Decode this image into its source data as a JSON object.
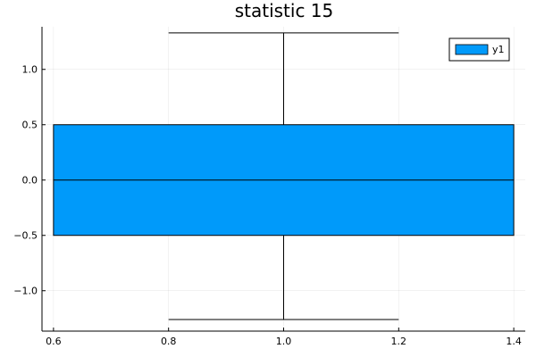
{
  "chart_data": {
    "type": "box",
    "title": "statistic 15",
    "xlabel": "",
    "ylabel": "",
    "xlim": [
      0.58,
      1.42
    ],
    "ylim": [
      -1.365,
      1.385
    ],
    "x_ticks": [
      0.6,
      0.8,
      1.0,
      1.2,
      1.4
    ],
    "x_tick_labels": [
      "0.6",
      "0.8",
      "1.0",
      "1.2",
      "1.4"
    ],
    "y_ticks": [
      -1.0,
      -0.5,
      0.0,
      0.5,
      1.0
    ],
    "y_tick_labels": [
      "−1.0",
      "−0.5",
      "0.0",
      "0.5",
      "1.0"
    ],
    "grid": true,
    "legend": {
      "position": "top-right",
      "entries": [
        "y1"
      ]
    },
    "series": [
      {
        "name": "y1",
        "color": "#009AFA",
        "box": {
          "x_left": 0.6,
          "x_right": 1.4,
          "q1": -0.5,
          "median": 0.0,
          "q3": 0.5
        },
        "whisker": {
          "x": 1.0,
          "low": -1.26,
          "high": 1.33,
          "cap_left": 0.8,
          "cap_right": 1.2
        }
      }
    ]
  }
}
